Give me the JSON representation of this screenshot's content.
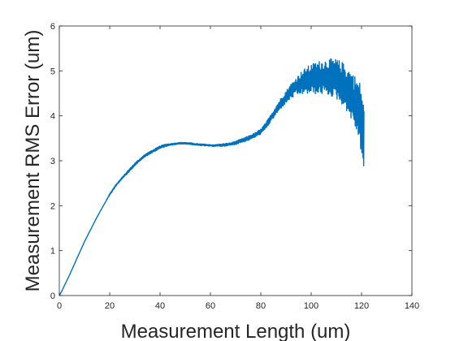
{
  "chart_data": {
    "type": "line",
    "xlabel": "Measurement Length (um)",
    "ylabel": "Measurement RMS Error (um)",
    "xlim": [
      0,
      140
    ],
    "ylim": [
      0,
      6
    ],
    "x_ticks": [
      "0",
      "20",
      "40",
      "60",
      "80",
      "100",
      "120",
      "140"
    ],
    "y_ticks": [
      "0",
      "1",
      "2",
      "3",
      "4",
      "5",
      "6"
    ],
    "grid": false,
    "legend": "none",
    "series": [
      {
        "color": "#0072BD",
        "style": "noisy trace widening into oscillation above ~95 um, ends at ~121 um",
        "x": [
          0,
          1,
          2,
          4,
          6,
          8,
          10,
          12,
          15,
          18,
          20,
          22,
          25,
          28,
          30,
          33,
          35,
          38,
          40,
          42,
          45,
          48,
          50,
          52,
          55,
          58,
          60,
          62,
          65,
          68,
          70,
          72,
          75,
          78,
          80,
          82,
          84,
          86,
          88,
          90,
          92,
          94,
          96,
          98,
          100,
          102,
          104,
          106,
          108,
          110,
          112,
          114,
          116,
          118,
          119,
          120,
          121
        ],
        "y": [
          0.0,
          0.1,
          0.22,
          0.45,
          0.7,
          0.95,
          1.2,
          1.42,
          1.75,
          2.05,
          2.25,
          2.42,
          2.62,
          2.8,
          2.92,
          3.07,
          3.15,
          3.24,
          3.3,
          3.34,
          3.37,
          3.39,
          3.39,
          3.38,
          3.36,
          3.35,
          3.34,
          3.34,
          3.35,
          3.37,
          3.4,
          3.44,
          3.5,
          3.58,
          3.65,
          3.78,
          3.95,
          4.12,
          4.28,
          4.42,
          4.55,
          4.65,
          4.73,
          4.78,
          4.82,
          4.84,
          4.86,
          4.86,
          4.85,
          4.82,
          4.74,
          4.62,
          4.45,
          4.25,
          4.1,
          3.9,
          3.4
        ],
        "noise": [
          0.0,
          0.0,
          0.0,
          0.0,
          0.0,
          0.0,
          0.0,
          0.0,
          0.0,
          0.0,
          0.02,
          0.02,
          0.02,
          0.03,
          0.03,
          0.03,
          0.03,
          0.03,
          0.03,
          0.03,
          0.02,
          0.02,
          0.02,
          0.02,
          0.02,
          0.02,
          0.02,
          0.02,
          0.03,
          0.03,
          0.04,
          0.04,
          0.05,
          0.05,
          0.06,
          0.07,
          0.08,
          0.1,
          0.12,
          0.14,
          0.17,
          0.2,
          0.25,
          0.3,
          0.33,
          0.36,
          0.38,
          0.4,
          0.42,
          0.45,
          0.47,
          0.5,
          0.55,
          0.6,
          0.7,
          0.75,
          0.8
        ]
      }
    ]
  }
}
